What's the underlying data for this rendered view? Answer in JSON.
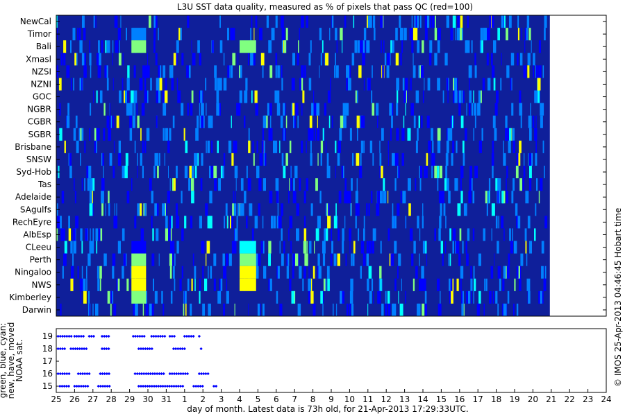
{
  "chart_data": [
    {
      "type": "heatmap",
      "title": "L3U SST data quality, measured as % of pixels that pass QC (red=100)",
      "y_categories": [
        "NewCal",
        "Timor",
        "Bali",
        "Xmasl",
        "NZSI",
        "NZNI",
        "GOC",
        "NGBR",
        "CGBR",
        "SGBR",
        "Brisbane",
        "SNSW",
        "Syd-Hob",
        "Tas",
        "Adelaide",
        "SAgulfs",
        "RechEyre",
        "AlbEsp",
        "CLeeu",
        "Perth",
        "Ningaloo",
        "NWS",
        "Kimberley",
        "Darwin"
      ],
      "x_start_day": 25,
      "x_span_days": 30,
      "data_end_day": 26.2,
      "colormap": [
        "#00008f",
        "#0000ff",
        "#0080ff",
        "#00ffff",
        "#80ff80",
        "#ffff00",
        "#ff8000",
        "#ff0000"
      ],
      "background_color": "#0f1f9a",
      "highlights": [
        {
          "row": "Timor",
          "day_start": 29.1,
          "day_end": 29.9,
          "value": 25
        },
        {
          "row": "Bali",
          "day_start": 29.1,
          "day_end": 29.9,
          "value": 55
        },
        {
          "row": "Bali",
          "day_start": 4.0,
          "day_end": 4.9,
          "value": 50
        },
        {
          "row": "NZSI",
          "day_start": 29.7,
          "day_end": 30.1,
          "value": 20
        },
        {
          "row": "CLeeu",
          "day_start": 29.1,
          "day_end": 29.9,
          "value": 20
        },
        {
          "row": "CLeeu",
          "day_start": 4.0,
          "day_end": 4.9,
          "value": 38
        },
        {
          "row": "Perth",
          "day_start": 29.1,
          "day_end": 29.9,
          "value": 50
        },
        {
          "row": "Perth",
          "day_start": 4.0,
          "day_end": 4.9,
          "value": 55
        },
        {
          "row": "Ningaloo",
          "day_start": 29.1,
          "day_end": 29.9,
          "value": 72
        },
        {
          "row": "Ningaloo",
          "day_start": 4.0,
          "day_end": 4.9,
          "value": 65
        },
        {
          "row": "NWS",
          "day_start": 29.1,
          "day_end": 29.9,
          "value": 72
        },
        {
          "row": "NWS",
          "day_start": 4.0,
          "day_end": 4.9,
          "value": 70
        },
        {
          "row": "Kimberley",
          "day_start": 29.1,
          "day_end": 29.9,
          "value": 50
        }
      ]
    },
    {
      "type": "scatter",
      "ylabel": "green, blue, cyan:\nnew, have, moved\nNOAA sat.",
      "y_ticks": [
        15,
        16,
        17,
        18,
        19
      ],
      "marker_color": "#0000ff",
      "series": [
        {
          "satellite": 19,
          "segments": [
            [
              25.1,
              25.9
            ],
            [
              26.0,
              26.5
            ],
            [
              26.8,
              27.1
            ],
            [
              27.5,
              27.9
            ],
            [
              29.2,
              29.9
            ],
            [
              30.2,
              31.0
            ],
            [
              31.2,
              31.5
            ],
            [
              32.0,
              32.5
            ],
            [
              32.8,
              32.9
            ]
          ]
        },
        {
          "satellite": 18,
          "segments": [
            [
              25.1,
              25.5
            ],
            [
              25.8,
              26.7
            ],
            [
              27.5,
              27.9
            ],
            [
              29.5,
              30.3
            ],
            [
              31.4,
              32.0
            ],
            [
              32.9,
              33.0
            ]
          ]
        },
        {
          "satellite": 16,
          "segments": [
            [
              25.1,
              25.8
            ],
            [
              26.2,
              26.8
            ],
            [
              27.4,
              27.9
            ],
            [
              29.3,
              30.9
            ],
            [
              31.2,
              32.2
            ],
            [
              32.8,
              33.3
            ]
          ]
        },
        {
          "satellite": 15,
          "segments": [
            [
              25.2,
              25.7
            ],
            [
              26.0,
              26.8
            ],
            [
              27.3,
              27.9
            ],
            [
              29.5,
              31.9
            ],
            [
              32.5,
              33.0
            ],
            [
              33.6,
              33.8
            ]
          ]
        }
      ],
      "x_tick_labels": [
        "25",
        "26",
        "27",
        "28",
        "29",
        "30",
        "31",
        "1",
        "2",
        "3",
        "4",
        "5",
        "6",
        "7",
        "8",
        "9",
        "10",
        "11",
        "12",
        "13",
        "14",
        "15",
        "16",
        "17",
        "18",
        "19",
        "20",
        "21",
        "22",
        "23",
        "24"
      ],
      "x_tick_positions": [
        0,
        1,
        2,
        3,
        4,
        5,
        6,
        7,
        8,
        9,
        10,
        11,
        12,
        13,
        14,
        15,
        16,
        17,
        18,
        19,
        20,
        21,
        22,
        23,
        24,
        25,
        26,
        27,
        28,
        29,
        30
      ]
    }
  ],
  "xlabel": "day of month. Latest data is 73h old, for 21-Apr-2013 17:29:33UTC.",
  "side_label": "© IMOS 25-Apr-2013 04:46:45 Hobart time"
}
